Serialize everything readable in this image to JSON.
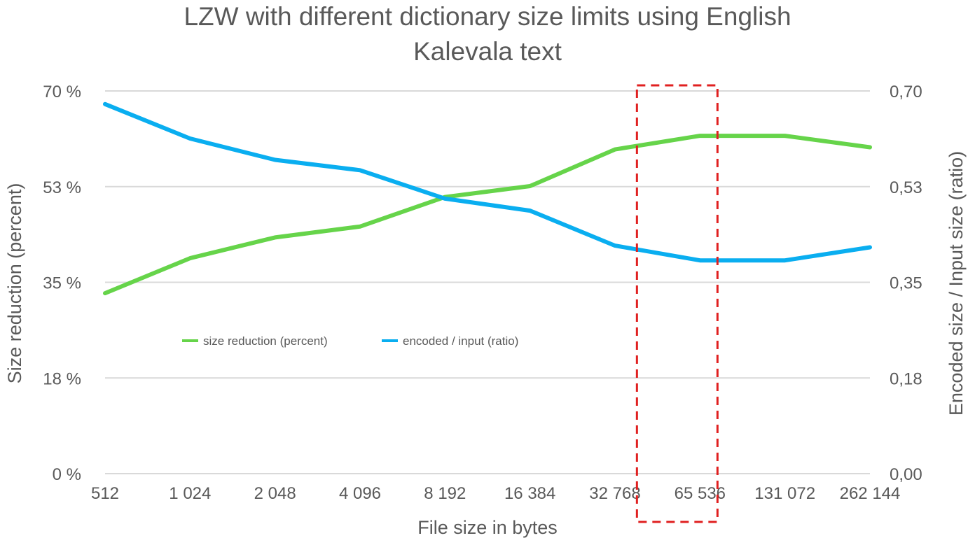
{
  "chart_data": {
    "type": "line",
    "title_lines": [
      "LZW with different dictionary size limits using English",
      "Kalevala text"
    ],
    "xlabel": "File size in bytes",
    "ylabel_left": "Size reduction (percent)",
    "ylabel_right": "Encoded size / Input size (ratio)",
    "categories": [
      "512",
      "1 024",
      "2 048",
      "4 096",
      "8 192",
      "16 384",
      "32 768",
      "65 536",
      "131 072",
      "262 144"
    ],
    "y_left": {
      "min": 0,
      "max": 70,
      "ticks": [
        0,
        17.5,
        35,
        52.5,
        70
      ],
      "tick_labels": [
        "0 %",
        "18 %",
        "35 %",
        "53 %",
        "70 %"
      ]
    },
    "y_right": {
      "min": 0,
      "max": 0.7,
      "ticks": [
        0,
        0.175,
        0.35,
        0.525,
        0.7
      ],
      "tick_labels": [
        "0,00",
        "0,18",
        "0,35",
        "0,53",
        "0,70"
      ]
    },
    "grid": true,
    "legend_position": "center-left",
    "series": [
      {
        "name": "size reduction (percent)",
        "axis": "left",
        "color": "#66d44a",
        "values": [
          33,
          39.4,
          43.2,
          45.2,
          50.6,
          52.6,
          59.3,
          61.8,
          61.8,
          59.7
        ]
      },
      {
        "name": "encoded / input (ratio)",
        "axis": "right",
        "color": "#0aaef0",
        "values": [
          0.676,
          0.613,
          0.574,
          0.555,
          0.503,
          0.481,
          0.417,
          0.39,
          0.39,
          0.414
        ]
      }
    ],
    "annotations": [
      {
        "type": "dashed-box",
        "color": "#e02020",
        "category": "65 536"
      }
    ]
  }
}
